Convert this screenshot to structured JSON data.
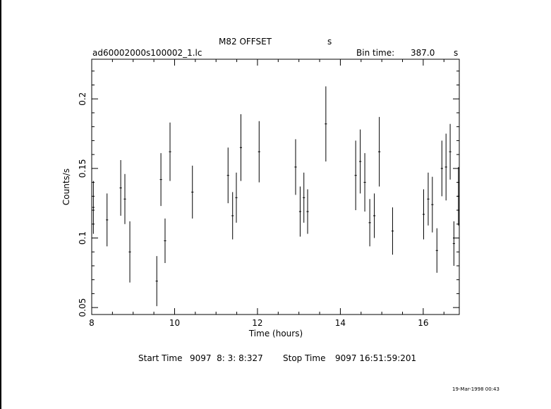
{
  "header": {
    "object": "M82 OFFSET",
    "object_unit": "s",
    "filename": "ad60002000s100002_1.lc",
    "bin_label": "Bin time:",
    "bin_value": "387.0",
    "bin_unit": "s"
  },
  "footer": {
    "start_label": "Start Time",
    "start_value": "9097  8: 3: 8:327",
    "stop_label": "Stop Time",
    "stop_value": "9097 16:51:59:201",
    "date_stamp": "19-Mar-1998 00:43"
  },
  "colors": {
    "axes": "#000000",
    "background": "#ffffff"
  },
  "chart_data": {
    "type": "scatter",
    "xlabel": "Time (hours)",
    "ylabel": "Counts/s",
    "xlim": [
      8.0,
      16.87
    ],
    "ylim": [
      0.045,
      0.2285
    ],
    "xticks": [
      8,
      10,
      12,
      14,
      16
    ],
    "yticks": [
      0.05,
      0.1,
      0.15,
      0.2
    ],
    "ytick_labels": [
      "0.05",
      "0.1",
      "0.15",
      "0.2"
    ],
    "points": [
      {
        "x": 8.04,
        "y": 0.122,
        "err": 0.019
      },
      {
        "x": 8.37,
        "y": 0.113,
        "err": 0.019
      },
      {
        "x": 8.7,
        "y": 0.136,
        "err": 0.02
      },
      {
        "x": 8.8,
        "y": 0.128,
        "err": 0.018
      },
      {
        "x": 8.92,
        "y": 0.09,
        "err": 0.022
      },
      {
        "x": 9.57,
        "y": 0.069,
        "err": 0.018
      },
      {
        "x": 9.67,
        "y": 0.142,
        "err": 0.019
      },
      {
        "x": 9.77,
        "y": 0.098,
        "err": 0.016
      },
      {
        "x": 9.89,
        "y": 0.162,
        "err": 0.021
      },
      {
        "x": 10.43,
        "y": 0.133,
        "err": 0.019
      },
      {
        "x": 11.29,
        "y": 0.145,
        "err": 0.02
      },
      {
        "x": 11.4,
        "y": 0.116,
        "err": 0.017
      },
      {
        "x": 11.49,
        "y": 0.129,
        "err": 0.018
      },
      {
        "x": 11.6,
        "y": 0.165,
        "err": 0.024
      },
      {
        "x": 12.04,
        "y": 0.162,
        "err": 0.022
      },
      {
        "x": 12.92,
        "y": 0.151,
        "err": 0.02
      },
      {
        "x": 13.03,
        "y": 0.119,
        "err": 0.018
      },
      {
        "x": 13.12,
        "y": 0.129,
        "err": 0.018
      },
      {
        "x": 13.21,
        "y": 0.119,
        "err": 0.016
      },
      {
        "x": 13.65,
        "y": 0.182,
        "err": 0.027
      },
      {
        "x": 14.37,
        "y": 0.145,
        "err": 0.025
      },
      {
        "x": 14.48,
        "y": 0.155,
        "err": 0.023
      },
      {
        "x": 14.59,
        "y": 0.14,
        "err": 0.021
      },
      {
        "x": 14.71,
        "y": 0.111,
        "err": 0.017
      },
      {
        "x": 14.82,
        "y": 0.116,
        "err": 0.016
      },
      {
        "x": 14.94,
        "y": 0.162,
        "err": 0.025
      },
      {
        "x": 15.26,
        "y": 0.105,
        "err": 0.017
      },
      {
        "x": 16.01,
        "y": 0.117,
        "err": 0.018
      },
      {
        "x": 16.12,
        "y": 0.128,
        "err": 0.019
      },
      {
        "x": 16.22,
        "y": 0.124,
        "err": 0.02
      },
      {
        "x": 16.33,
        "y": 0.091,
        "err": 0.016
      },
      {
        "x": 16.45,
        "y": 0.15,
        "err": 0.02
      },
      {
        "x": 16.55,
        "y": 0.151,
        "err": 0.024
      },
      {
        "x": 16.65,
        "y": 0.162,
        "err": 0.02
      },
      {
        "x": 16.74,
        "y": 0.096,
        "err": 0.016
      },
      {
        "x": 16.85,
        "y": 0.13,
        "err": 0.021
      }
    ]
  }
}
